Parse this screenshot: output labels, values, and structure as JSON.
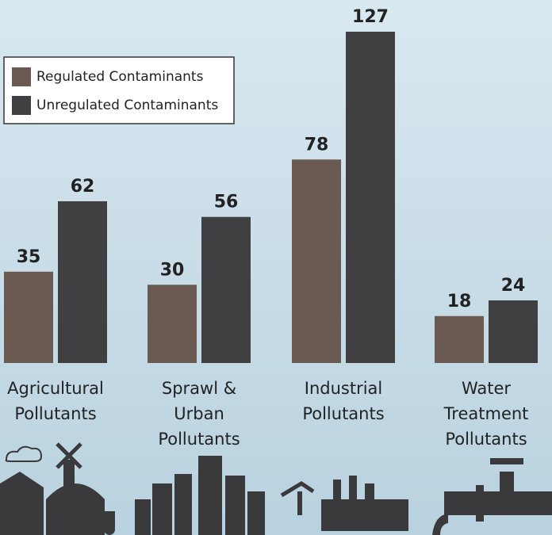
{
  "chart_data": {
    "type": "bar",
    "categories": [
      "Agricultural\nPollutants",
      "Sprawl &\nUrban\nPollutants",
      "Industrial\nPollutants",
      "Water\nTreatment\nPollutants"
    ],
    "series": [
      {
        "name": "Regulated Contaminants",
        "color": "#6b5a52",
        "values": [
          35,
          30,
          78,
          18
        ]
      },
      {
        "name": "Unregulated Contaminants",
        "color": "#404043",
        "values": [
          62,
          56,
          127,
          24
        ]
      }
    ],
    "legend": "upper left",
    "grid": false
  }
}
